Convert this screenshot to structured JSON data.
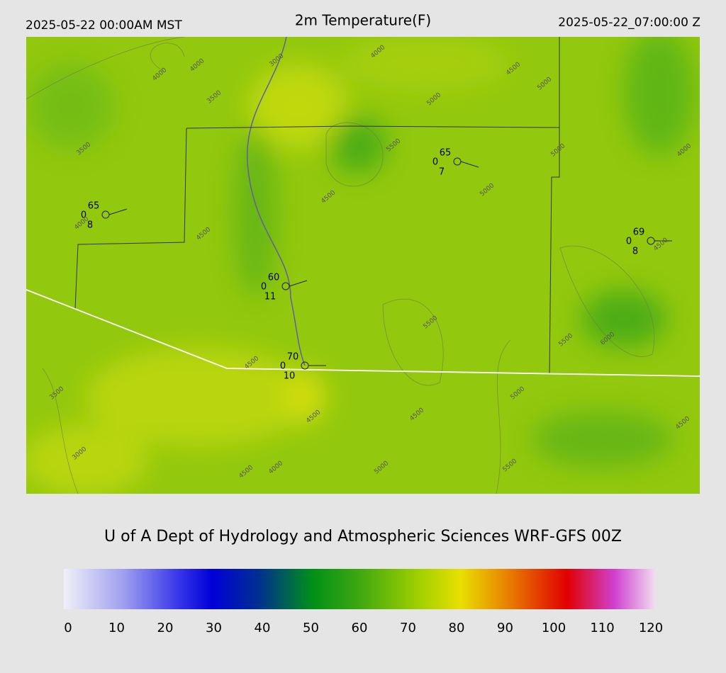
{
  "header": {
    "local_time": "2025-05-22 00:00AM MST",
    "title": "2m Temperature(F)",
    "valid_time": "2025-05-22_07:00:00 Z"
  },
  "stations": [
    {
      "temperature": 65,
      "left": 0,
      "bottom": 8
    },
    {
      "temperature": 65,
      "left": 0,
      "bottom": 7
    },
    {
      "temperature": 69,
      "left": 0,
      "bottom": 8
    },
    {
      "temperature": 60,
      "left": 0,
      "bottom": 11
    },
    {
      "temperature": 70,
      "left": 0,
      "bottom": 10
    }
  ],
  "contour_labels": [
    4000,
    4000,
    3000,
    3500,
    3500,
    4000,
    4500,
    5000,
    5000,
    5500,
    5000,
    4000,
    5000,
    4500,
    4000,
    4500,
    4500,
    5500,
    5500,
    6000,
    4500,
    3500,
    5000,
    4500,
    4500,
    4500,
    3000,
    4500,
    4000,
    5000,
    5500
  ],
  "credit": "U of A Dept of Hydrology and Atmospheric Sciences WRF-GFS 00Z",
  "colorbar": {
    "range": [
      0,
      120
    ],
    "ticks": [
      0,
      10,
      20,
      30,
      40,
      50,
      60,
      70,
      80,
      90,
      100,
      110,
      120
    ]
  }
}
